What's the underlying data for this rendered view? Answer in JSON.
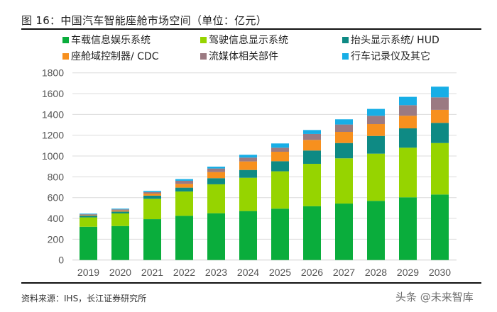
{
  "title": "图 16：中国汽车智能座舱市场空间（单位：亿元）",
  "source": "资料来源：IHS，长江证券研究所",
  "watermark": "头条 @未来智库",
  "chart_data": {
    "type": "bar",
    "stacked": true,
    "title": "中国汽车智能座舱市场空间（单位：亿元）",
    "xlabel": "",
    "ylabel": "",
    "ylim": [
      0,
      1800
    ],
    "yticks": [
      0,
      200,
      400,
      600,
      800,
      1000,
      1200,
      1400,
      1600,
      1800
    ],
    "grid": true,
    "legend_position": "top",
    "categories": [
      "2019",
      "2020",
      "2021",
      "2022",
      "2023",
      "2024",
      "2025",
      "2026",
      "2027",
      "2028",
      "2029",
      "2030"
    ],
    "series": [
      {
        "name": "车载信息娱乐系统",
        "color": "#0aad3c",
        "values": [
          320,
          327,
          393,
          425,
          450,
          471,
          494,
          518,
          543,
          569,
          603,
          630
        ]
      },
      {
        "name": "驾驶信息显示系统",
        "color": "#96d400",
        "values": [
          90,
          121,
          196,
          234,
          278,
          320,
          359,
          407,
          435,
          454,
          477,
          495
        ]
      },
      {
        "name": "抬头显示系统/ HUD",
        "color": "#0e8a84",
        "values": [
          17,
          18,
          30,
          37,
          59,
          75,
          97,
          128,
          147,
          170,
          186,
          194
        ]
      },
      {
        "name": "座舱域控制器/ CDC",
        "color": "#f7901e",
        "values": [
          6,
          10,
          20,
          36,
          59,
          82,
          91,
          102,
          107,
          114,
          121,
          125
        ]
      },
      {
        "name": "流媒体相关部件",
        "color": "#9b7a82",
        "values": [
          7,
          11,
          14,
          30,
          34,
          37,
          39,
          57,
          71,
          80,
          102,
          120
        ]
      },
      {
        "name": "行车记录仪及其它",
        "color": "#17aee6",
        "values": [
          6,
          7,
          11,
          16,
          18,
          27,
          41,
          38,
          50,
          66,
          80,
          103
        ]
      }
    ]
  }
}
